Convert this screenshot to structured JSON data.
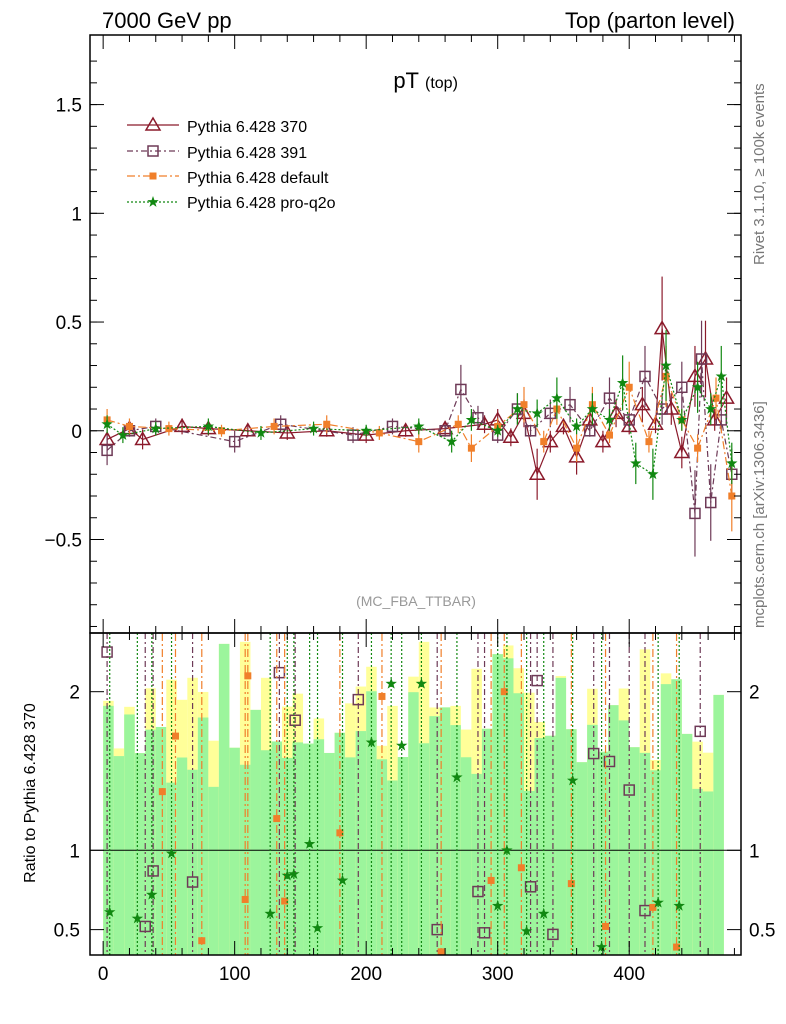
{
  "header": {
    "left": "7000 GeV pp",
    "right": "Top (parton level)"
  },
  "side_labels": {
    "rivet": "Rivet 3.1.10, ≥ 100k events",
    "mcplots": "mcplots.cern.ch [arXiv:1306.3436]"
  },
  "analysis_tag": "(MC_FBA_TTBAR)",
  "colors": {
    "p370": "#8b1a2b",
    "p391": "#6e3a57",
    "pdef": "#f07f2a",
    "pq2o": "#118811",
    "band_green": "#9cf59c",
    "band_yellow": "#ffff99"
  },
  "chart_data": [
    {
      "type": "line",
      "title": "pT",
      "title_sub": "(top)",
      "ylim": [
        -0.93,
        1.82
      ],
      "yticks": [
        -0.5,
        0,
        0.5,
        1,
        1.5
      ],
      "ytick_labels": [
        "−0.5",
        "0",
        "0.5",
        "1",
        "1.5"
      ],
      "xlim": [
        -10,
        485
      ],
      "legend_position": "top-left",
      "series": [
        {
          "name": "Pythia 6.428 370",
          "marker": "triangle",
          "dash": "",
          "points": [
            [
              3,
              -0.04
            ],
            [
              20,
              0.01
            ],
            [
              30,
              -0.04
            ],
            [
              60,
              0.02
            ],
            [
              80,
              0.01
            ],
            [
              110,
              0.0
            ],
            [
              140,
              -0.01
            ],
            [
              170,
              0.0
            ],
            [
              200,
              -0.02
            ],
            [
              230,
              0.0
            ],
            [
              260,
              0.01
            ],
            [
              290,
              0.03
            ],
            [
              300,
              0.05
            ],
            [
              310,
              -0.03
            ],
            [
              320,
              0.08
            ],
            [
              330,
              -0.2
            ],
            [
              340,
              -0.05
            ],
            [
              350,
              0.02
            ],
            [
              360,
              -0.12
            ],
            [
              370,
              0.05
            ],
            [
              380,
              -0.05
            ],
            [
              390,
              0.08
            ],
            [
              400,
              0.02
            ],
            [
              410,
              0.12
            ],
            [
              420,
              0.03
            ],
            [
              425,
              0.47
            ],
            [
              432,
              0.1
            ],
            [
              440,
              -0.1
            ],
            [
              450,
              0.25
            ],
            [
              458,
              0.33
            ],
            [
              465,
              0.05
            ],
            [
              474,
              0.15
            ]
          ]
        },
        {
          "name": "Pythia 6.428 391",
          "marker": "square",
          "dash": "6 3 2 3",
          "points": [
            [
              3,
              -0.09
            ],
            [
              20,
              0.0
            ],
            [
              40,
              0.02
            ],
            [
              100,
              -0.05
            ],
            [
              135,
              0.03
            ],
            [
              190,
              -0.02
            ],
            [
              220,
              0.02
            ],
            [
              260,
              0.0
            ],
            [
              272,
              0.19
            ],
            [
              285,
              0.06
            ],
            [
              300,
              -0.02
            ],
            [
              315,
              0.1
            ],
            [
              325,
              0.0
            ],
            [
              340,
              0.08
            ],
            [
              355,
              0.12
            ],
            [
              370,
              0.0
            ],
            [
              385,
              0.15
            ],
            [
              400,
              0.05
            ],
            [
              412,
              0.25
            ],
            [
              425,
              0.1
            ],
            [
              440,
              0.2
            ],
            [
              450,
              -0.38
            ],
            [
              455,
              0.33
            ],
            [
              462,
              -0.33
            ],
            [
              470,
              0.05
            ],
            [
              478,
              -0.2
            ]
          ]
        },
        {
          "name": "Pythia 6.428 default",
          "marker": "dot",
          "dash": "8 3 2 3",
          "points": [
            [
              3,
              0.05
            ],
            [
              20,
              0.02
            ],
            [
              50,
              0.01
            ],
            [
              90,
              0.0
            ],
            [
              130,
              0.02
            ],
            [
              170,
              0.03
            ],
            [
              210,
              -0.01
            ],
            [
              240,
              -0.05
            ],
            [
              270,
              0.03
            ],
            [
              280,
              -0.08
            ],
            [
              300,
              0.02
            ],
            [
              320,
              0.12
            ],
            [
              335,
              -0.05
            ],
            [
              345,
              0.1
            ],
            [
              360,
              -0.08
            ],
            [
              372,
              0.12
            ],
            [
              385,
              -0.02
            ],
            [
              400,
              0.2
            ],
            [
              415,
              -0.05
            ],
            [
              428,
              0.25
            ],
            [
              440,
              0.05
            ],
            [
              452,
              -0.08
            ],
            [
              466,
              0.15
            ],
            [
              478,
              -0.3
            ]
          ]
        },
        {
          "name": "Pythia 6.428 pro-q2o",
          "marker": "star",
          "dash": "2 2",
          "points": [
            [
              3,
              0.03
            ],
            [
              15,
              -0.02
            ],
            [
              40,
              0.01
            ],
            [
              80,
              0.02
            ],
            [
              120,
              -0.01
            ],
            [
              160,
              0.01
            ],
            [
              200,
              0.0
            ],
            [
              240,
              0.02
            ],
            [
              265,
              -0.05
            ],
            [
              280,
              0.05
            ],
            [
              300,
              0.0
            ],
            [
              315,
              0.1
            ],
            [
              330,
              0.08
            ],
            [
              345,
              0.15
            ],
            [
              360,
              0.02
            ],
            [
              372,
              0.1
            ],
            [
              385,
              0.05
            ],
            [
              395,
              0.22
            ],
            [
              405,
              -0.15
            ],
            [
              418,
              -0.2
            ],
            [
              428,
              0.3
            ],
            [
              440,
              0.05
            ],
            [
              452,
              0.2
            ],
            [
              462,
              0.1
            ],
            [
              470,
              0.25
            ],
            [
              478,
              -0.15
            ]
          ]
        }
      ]
    },
    {
      "type": "line",
      "ylabel": "Ratio to Pythia 6.428 370",
      "ylim": [
        0.34,
        2.37
      ],
      "yticks": [
        0.5,
        1,
        2
      ],
      "ytick_labels": [
        "0.5",
        "1",
        "2"
      ],
      "xlim": [
        -10,
        485
      ],
      "xticks": [
        0,
        100,
        200,
        300,
        400
      ],
      "xtick_labels": [
        "0",
        "100",
        "200",
        "300",
        "400"
      ],
      "reference_line": 1,
      "ratio_points": {
        "p391": [
          [
            3,
            2.25
          ],
          [
            32,
            0.52
          ],
          [
            38,
            0.87
          ],
          [
            68,
            0.8
          ],
          [
            134,
            2.12
          ],
          [
            146,
            1.82
          ],
          [
            194,
            1.95
          ],
          [
            254,
            0.5
          ],
          [
            285,
            0.74
          ],
          [
            290,
            0.48
          ],
          [
            325,
            0.77
          ],
          [
            330,
            2.07
          ],
          [
            342,
            0.47
          ],
          [
            373,
            1.61
          ],
          [
            385,
            1.56
          ],
          [
            400,
            1.38
          ],
          [
            412,
            0.62
          ],
          [
            454,
            1.75
          ]
        ],
        "pdef": [
          [
            45,
            1.37
          ],
          [
            55,
            1.72
          ],
          [
            75,
            0.43
          ],
          [
            108,
            0.69
          ],
          [
            110,
            2.1
          ],
          [
            132,
            1.2
          ],
          [
            138,
            0.68
          ],
          [
            180,
            1.11
          ],
          [
            212,
            1.97
          ],
          [
            257,
            0.36
          ],
          [
            295,
            0.81
          ],
          [
            305,
            2.0
          ],
          [
            318,
            0.89
          ],
          [
            356,
            0.79
          ],
          [
            382,
            0.52
          ],
          [
            418,
            0.64
          ],
          [
            436,
            0.39
          ]
        ],
        "pq2o": [
          [
            5,
            0.61
          ],
          [
            26,
            0.57
          ],
          [
            37,
            0.72
          ],
          [
            52,
            0.98
          ],
          [
            127,
            0.6
          ],
          [
            140,
            0.84
          ],
          [
            145,
            0.85
          ],
          [
            157,
            1.04
          ],
          [
            163,
            0.51
          ],
          [
            182,
            0.81
          ],
          [
            204,
            1.68
          ],
          [
            219,
            2.05
          ],
          [
            227,
            1.66
          ],
          [
            242,
            2.05
          ],
          [
            269,
            1.46
          ],
          [
            300,
            0.65
          ],
          [
            307,
            1.0
          ],
          [
            322,
            0.49
          ],
          [
            335,
            0.6
          ],
          [
            357,
            1.44
          ],
          [
            379,
            0.39
          ],
          [
            422,
            0.67
          ],
          [
            438,
            0.65
          ]
        ]
      }
    }
  ]
}
